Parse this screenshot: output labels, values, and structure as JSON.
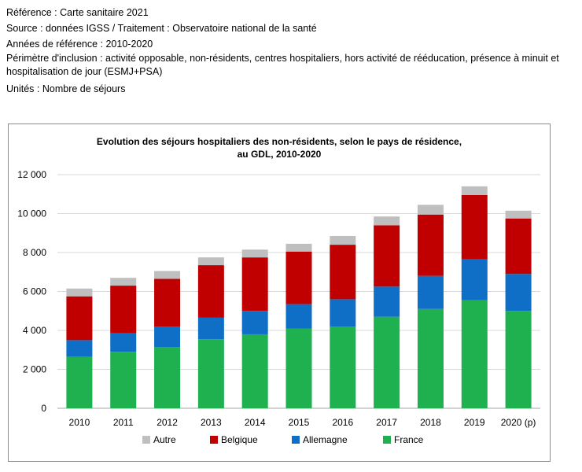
{
  "meta": {
    "reference": "Référence : Carte sanitaire 2021",
    "source": "Source : données IGSS / Traitement : Observatoire national de la santé",
    "years": "Années de référence : 2010-2020",
    "perimeter": "Périmètre d'inclusion : activité opposable, non-résidents, centres hospitaliers, hors activité de rééducation, présence à minuit et hospitalisation de jour (ESMJ+PSA)",
    "units": "Unités : Nombre de séjours"
  },
  "chart_data": {
    "type": "bar",
    "stacked": true,
    "title_line1": "Evolution des séjours hospitaliers des non-résidents, selon le pays de résidence,",
    "title_line2": "au GDL, 2010-2020",
    "categories": [
      "2010",
      "2011",
      "2012",
      "2013",
      "2014",
      "2015",
      "2016",
      "2017",
      "2018",
      "2019",
      "2020 (p)"
    ],
    "series": [
      {
        "name": "France",
        "color": "#1fb050",
        "values": [
          2650,
          2900,
          3150,
          3550,
          3800,
          4100,
          4200,
          4700,
          5100,
          5550,
          5000
        ]
      },
      {
        "name": "Allemagne",
        "color": "#0f6fc6",
        "values": [
          850,
          950,
          1050,
          1100,
          1200,
          1250,
          1400,
          1550,
          1700,
          2100,
          1900
        ]
      },
      {
        "name": "Belgique",
        "color": "#c00000",
        "values": [
          2250,
          2450,
          2450,
          2700,
          2750,
          2700,
          2800,
          3150,
          3150,
          3300,
          2850
        ]
      },
      {
        "name": "Autre",
        "color": "#bfbfbf",
        "values": [
          400,
          400,
          400,
          400,
          400,
          400,
          450,
          450,
          500,
          450,
          400
        ]
      }
    ],
    "ylim": [
      0,
      12000
    ],
    "yticks": [
      "0",
      "2 000",
      "4 000",
      "6 000",
      "8 000",
      "10 000",
      "12 000"
    ],
    "ytick_values": [
      0,
      2000,
      4000,
      6000,
      8000,
      10000,
      12000
    ],
    "legend_order": [
      "Autre",
      "Belgique",
      "Allemagne",
      "France"
    ],
    "legend_position": "bottom",
    "grid": true
  }
}
